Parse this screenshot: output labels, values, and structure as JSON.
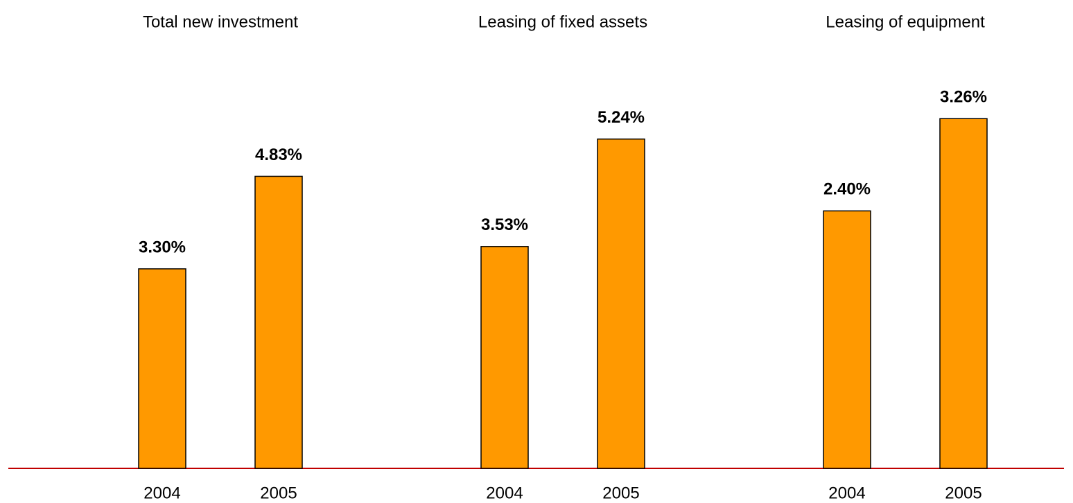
{
  "chart_data": [
    {
      "type": "bar",
      "title": "Total new investment",
      "categories": [
        "2004",
        "2005"
      ],
      "values": [
        3.3,
        4.83
      ],
      "value_labels": [
        "3.30%",
        "4.83%"
      ],
      "color": "#ff9900",
      "ylim": [
        0,
        6.6
      ]
    },
    {
      "type": "bar",
      "title": "Leasing of fixed assets",
      "categories": [
        "2004",
        "2005"
      ],
      "values": [
        3.53,
        5.24
      ],
      "value_labels": [
        "3.53%",
        "5.24%"
      ],
      "color": "#ff9900",
      "ylim": [
        0,
        6.35
      ]
    },
    {
      "type": "bar",
      "title": "Leasing of equipment",
      "categories": [
        "2004",
        "2005"
      ],
      "values": [
        2.4,
        3.26
      ],
      "value_labels": [
        "2.40%",
        "3.26%"
      ],
      "color": "#ff9900",
      "ylim": [
        0,
        3.72
      ]
    }
  ]
}
